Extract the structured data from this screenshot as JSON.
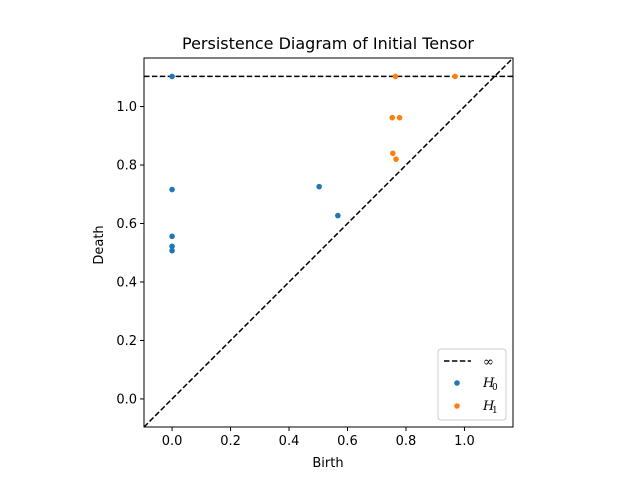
{
  "chart_data": {
    "type": "scatter",
    "title": "Persistence Diagram of Initial Tensor",
    "xlabel": "Birth",
    "ylabel": "Death",
    "xlim": [
      -0.096,
      1.166
    ],
    "ylim": [
      -0.096,
      1.166
    ],
    "xticks": [
      "0.0",
      "0.2",
      "0.4",
      "0.6",
      "0.8",
      "1.0"
    ],
    "yticks": [
      "0.0",
      "0.2",
      "0.4",
      "0.6",
      "0.8",
      "1.0"
    ],
    "xtick_values": [
      0.0,
      0.2,
      0.4,
      0.6,
      0.8,
      1.0
    ],
    "ytick_values": [
      0.0,
      0.2,
      0.4,
      0.6,
      0.8,
      1.0
    ],
    "infinity_death": 1.103,
    "colors": {
      "H0": "#1f77b4",
      "H1": "#ff7f0e",
      "lines": "#000000"
    },
    "legend_position": "lower-right",
    "legend": [
      {
        "label": "∞",
        "kind": "dashed-line"
      },
      {
        "label_main": "H",
        "label_sub": "0",
        "kind": "marker",
        "color": "#1f77b4"
      },
      {
        "label_main": "H",
        "label_sub": "1",
        "kind": "marker",
        "color": "#ff7f0e"
      }
    ],
    "series": [
      {
        "name": "H0",
        "color": "#1f77b4",
        "points": [
          [
            0.0,
            1.103
          ],
          [
            0.0,
            0.716
          ],
          [
            0.0,
            0.556
          ],
          [
            0.0,
            0.522
          ],
          [
            0.0,
            0.507
          ],
          [
            0.503,
            0.726
          ],
          [
            0.567,
            0.627
          ]
        ]
      },
      {
        "name": "H1",
        "color": "#ff7f0e",
        "points": [
          [
            0.764,
            1.103
          ],
          [
            0.968,
            1.103
          ],
          [
            0.753,
            0.962
          ],
          [
            0.778,
            0.962
          ],
          [
            0.755,
            0.84
          ],
          [
            0.766,
            0.82
          ]
        ]
      }
    ]
  }
}
